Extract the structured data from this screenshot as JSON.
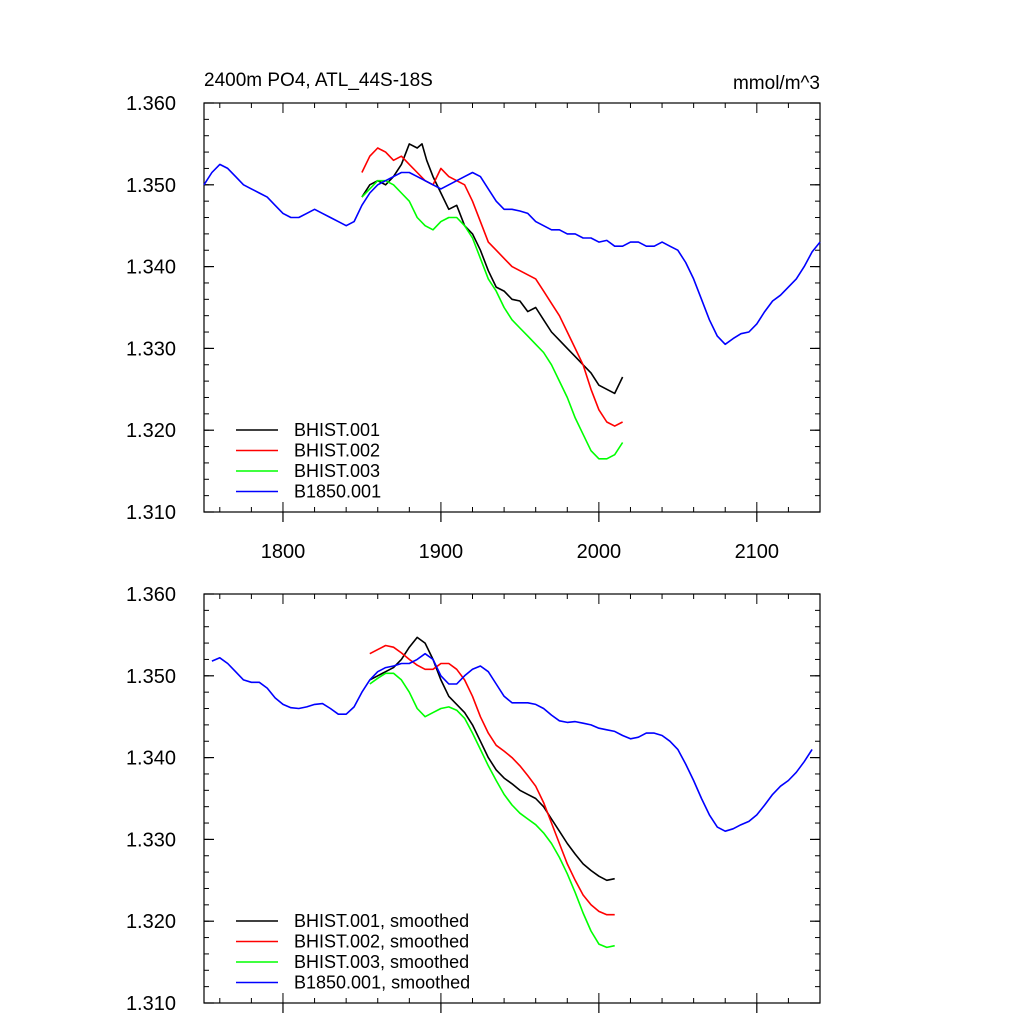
{
  "chart_data": [
    {
      "type": "line",
      "title": "2400m PO4, ATL_44S-18S",
      "units": "mmol/m^3",
      "xlim": [
        1750,
        2140
      ],
      "ylim": [
        1.31,
        1.36
      ],
      "xticks": [
        1800,
        1900,
        2000,
        2100
      ],
      "yticks": [
        1.31,
        1.32,
        1.33,
        1.34,
        1.35,
        1.36
      ],
      "ytick_labels": [
        "1.310",
        "1.320",
        "1.330",
        "1.340",
        "1.350",
        "1.360"
      ],
      "xtick_labels_shown": true,
      "legend_position": "bottom-left",
      "series": [
        {
          "name": "BHIST.001",
          "color": "#000000",
          "x": [
            1850,
            1855,
            1860,
            1865,
            1870,
            1875,
            1880,
            1885,
            1888,
            1891,
            1895,
            1900,
            1905,
            1910,
            1915,
            1920,
            1925,
            1930,
            1935,
            1940,
            1945,
            1950,
            1955,
            1960,
            1965,
            1970,
            1975,
            1980,
            1985,
            1990,
            1995,
            2000,
            2005,
            2010,
            2015
          ],
          "y": [
            1.3485,
            1.35,
            1.3505,
            1.35,
            1.351,
            1.3525,
            1.355,
            1.3545,
            1.355,
            1.353,
            1.351,
            1.349,
            1.347,
            1.3475,
            1.345,
            1.344,
            1.342,
            1.3395,
            1.3375,
            1.337,
            1.336,
            1.3358,
            1.3345,
            1.335,
            1.3335,
            1.332,
            1.331,
            1.33,
            1.329,
            1.328,
            1.327,
            1.3255,
            1.325,
            1.3245,
            1.3265
          ]
        },
        {
          "name": "BHIST.002",
          "color": "#ff0000",
          "x": [
            1850,
            1855,
            1860,
            1865,
            1870,
            1875,
            1880,
            1885,
            1890,
            1895,
            1900,
            1905,
            1910,
            1915,
            1920,
            1925,
            1930,
            1935,
            1940,
            1945,
            1950,
            1955,
            1960,
            1965,
            1970,
            1975,
            1980,
            1985,
            1990,
            1995,
            2000,
            2005,
            2010,
            2015
          ],
          "y": [
            1.3515,
            1.3535,
            1.3545,
            1.354,
            1.353,
            1.3535,
            1.3525,
            1.3515,
            1.3505,
            1.35,
            1.352,
            1.351,
            1.3505,
            1.35,
            1.348,
            1.3455,
            1.343,
            1.342,
            1.341,
            1.34,
            1.3395,
            1.339,
            1.3385,
            1.337,
            1.3355,
            1.334,
            1.332,
            1.33,
            1.328,
            1.325,
            1.3225,
            1.321,
            1.3205,
            1.321
          ]
        },
        {
          "name": "BHIST.003",
          "color": "#00ff00",
          "x": [
            1850,
            1855,
            1860,
            1865,
            1870,
            1875,
            1880,
            1885,
            1890,
            1895,
            1900,
            1905,
            1910,
            1915,
            1920,
            1925,
            1930,
            1935,
            1940,
            1945,
            1950,
            1955,
            1960,
            1965,
            1970,
            1975,
            1980,
            1985,
            1990,
            1995,
            2000,
            2005,
            2010,
            2015
          ],
          "y": [
            1.3485,
            1.3495,
            1.3505,
            1.3505,
            1.35,
            1.349,
            1.348,
            1.346,
            1.345,
            1.3445,
            1.3455,
            1.346,
            1.346,
            1.345,
            1.3435,
            1.341,
            1.3385,
            1.337,
            1.335,
            1.3335,
            1.3325,
            1.3315,
            1.3305,
            1.3295,
            1.328,
            1.326,
            1.324,
            1.3215,
            1.3195,
            1.3175,
            1.3165,
            1.3165,
            1.317,
            1.3185
          ]
        },
        {
          "name": "B1850.001",
          "color": "#0000ff",
          "x": [
            1750,
            1755,
            1760,
            1765,
            1770,
            1775,
            1780,
            1785,
            1790,
            1795,
            1800,
            1805,
            1810,
            1815,
            1820,
            1825,
            1830,
            1835,
            1840,
            1845,
            1850,
            1855,
            1860,
            1865,
            1870,
            1875,
            1880,
            1885,
            1890,
            1895,
            1900,
            1905,
            1910,
            1915,
            1920,
            1925,
            1930,
            1935,
            1940,
            1945,
            1950,
            1955,
            1960,
            1965,
            1970,
            1975,
            1980,
            1985,
            1990,
            1995,
            2000,
            2005,
            2010,
            2015,
            2020,
            2025,
            2030,
            2035,
            2040,
            2045,
            2050,
            2055,
            2060,
            2065,
            2070,
            2075,
            2080,
            2085,
            2090,
            2095,
            2100,
            2105,
            2110,
            2115,
            2120,
            2125,
            2130,
            2135,
            2140
          ],
          "y": [
            1.35,
            1.3515,
            1.3525,
            1.352,
            1.351,
            1.35,
            1.3495,
            1.349,
            1.3485,
            1.3475,
            1.3465,
            1.346,
            1.346,
            1.3465,
            1.347,
            1.3465,
            1.346,
            1.3455,
            1.345,
            1.3455,
            1.3475,
            1.349,
            1.35,
            1.3505,
            1.351,
            1.3515,
            1.3515,
            1.351,
            1.3505,
            1.35,
            1.3495,
            1.35,
            1.3505,
            1.351,
            1.3515,
            1.351,
            1.3495,
            1.348,
            1.347,
            1.347,
            1.3468,
            1.3465,
            1.3455,
            1.345,
            1.3445,
            1.3445,
            1.344,
            1.344,
            1.3435,
            1.3435,
            1.343,
            1.3432,
            1.3425,
            1.3425,
            1.343,
            1.343,
            1.3425,
            1.3425,
            1.343,
            1.3425,
            1.342,
            1.3405,
            1.3385,
            1.336,
            1.3335,
            1.3315,
            1.3305,
            1.3312,
            1.3318,
            1.332,
            1.333,
            1.3345,
            1.3358,
            1.3365,
            1.3375,
            1.3385,
            1.34,
            1.3418,
            1.343
          ]
        }
      ]
    },
    {
      "type": "line",
      "title": "",
      "xlim": [
        1750,
        2140
      ],
      "ylim": [
        1.31,
        1.36
      ],
      "xticks": [
        1800,
        1900,
        2000,
        2100
      ],
      "yticks": [
        1.31,
        1.32,
        1.33,
        1.34,
        1.35,
        1.36
      ],
      "ytick_labels": [
        "1.310",
        "1.320",
        "1.330",
        "1.340",
        "1.350",
        "1.360"
      ],
      "xtick_labels_shown": false,
      "legend_position": "bottom-left",
      "series": [
        {
          "name": "BHIST.001, smoothed",
          "color": "#000000",
          "x": [
            1855,
            1860,
            1865,
            1870,
            1875,
            1880,
            1885,
            1890,
            1895,
            1900,
            1905,
            1910,
            1915,
            1920,
            1925,
            1930,
            1935,
            1940,
            1945,
            1950,
            1955,
            1960,
            1965,
            1970,
            1975,
            1980,
            1985,
            1990,
            1995,
            2000,
            2005,
            2010
          ],
          "y": [
            1.3495,
            1.35,
            1.3505,
            1.351,
            1.352,
            1.3535,
            1.3547,
            1.354,
            1.352,
            1.3495,
            1.3475,
            1.3465,
            1.3455,
            1.344,
            1.342,
            1.34,
            1.3385,
            1.3375,
            1.3368,
            1.336,
            1.3355,
            1.335,
            1.334,
            1.3325,
            1.331,
            1.3295,
            1.3282,
            1.327,
            1.3262,
            1.3255,
            1.325,
            1.3252
          ]
        },
        {
          "name": "BHIST.002, smoothed",
          "color": "#ff0000",
          "x": [
            1855,
            1860,
            1865,
            1870,
            1875,
            1880,
            1885,
            1890,
            1895,
            1900,
            1905,
            1910,
            1915,
            1920,
            1925,
            1930,
            1935,
            1940,
            1945,
            1950,
            1955,
            1960,
            1965,
            1970,
            1975,
            1980,
            1985,
            1990,
            1995,
            2000,
            2005,
            2010
          ],
          "y": [
            1.3527,
            1.3532,
            1.3537,
            1.3535,
            1.3528,
            1.352,
            1.3513,
            1.3508,
            1.3508,
            1.3515,
            1.3515,
            1.3508,
            1.3495,
            1.3475,
            1.345,
            1.343,
            1.3415,
            1.3408,
            1.34,
            1.339,
            1.3378,
            1.3365,
            1.3345,
            1.332,
            1.3295,
            1.327,
            1.325,
            1.3232,
            1.322,
            1.3212,
            1.3208,
            1.3208
          ]
        },
        {
          "name": "BHIST.003, smoothed",
          "color": "#00ff00",
          "x": [
            1855,
            1860,
            1865,
            1870,
            1875,
            1880,
            1885,
            1890,
            1895,
            1900,
            1905,
            1910,
            1915,
            1920,
            1925,
            1930,
            1935,
            1940,
            1945,
            1950,
            1955,
            1960,
            1965,
            1970,
            1975,
            1980,
            1985,
            1990,
            1995,
            2000,
            2005,
            2010
          ],
          "y": [
            1.349,
            1.3497,
            1.3503,
            1.3503,
            1.3495,
            1.348,
            1.346,
            1.345,
            1.3455,
            1.346,
            1.3462,
            1.3458,
            1.3448,
            1.343,
            1.341,
            1.339,
            1.3372,
            1.3355,
            1.3342,
            1.3332,
            1.3325,
            1.3318,
            1.3308,
            1.3295,
            1.3278,
            1.3258,
            1.3235,
            1.321,
            1.3188,
            1.3172,
            1.3168,
            1.317
          ]
        },
        {
          "name": "B1850.001, smoothed",
          "color": "#0000ff",
          "x": [
            1755,
            1760,
            1765,
            1770,
            1775,
            1780,
            1785,
            1790,
            1795,
            1800,
            1805,
            1810,
            1815,
            1820,
            1825,
            1830,
            1835,
            1840,
            1845,
            1850,
            1855,
            1860,
            1865,
            1870,
            1875,
            1880,
            1885,
            1890,
            1895,
            1900,
            1905,
            1910,
            1915,
            1920,
            1925,
            1930,
            1935,
            1940,
            1945,
            1950,
            1955,
            1960,
            1965,
            1970,
            1975,
            1980,
            1985,
            1990,
            1995,
            2000,
            2005,
            2010,
            2015,
            2020,
            2025,
            2030,
            2035,
            2040,
            2045,
            2050,
            2055,
            2060,
            2065,
            2070,
            2075,
            2080,
            2085,
            2090,
            2095,
            2100,
            2105,
            2110,
            2115,
            2120,
            2125,
            2130,
            2135
          ],
          "y": [
            1.3518,
            1.3522,
            1.3515,
            1.3505,
            1.3495,
            1.3492,
            1.3492,
            1.3485,
            1.3473,
            1.3465,
            1.3461,
            1.346,
            1.3462,
            1.3465,
            1.3466,
            1.346,
            1.3453,
            1.3453,
            1.3462,
            1.348,
            1.3495,
            1.3505,
            1.351,
            1.3512,
            1.3515,
            1.3515,
            1.352,
            1.3527,
            1.352,
            1.35,
            1.349,
            1.349,
            1.35,
            1.3508,
            1.3512,
            1.3505,
            1.349,
            1.3475,
            1.3467,
            1.3467,
            1.3467,
            1.3465,
            1.346,
            1.3452,
            1.3445,
            1.3443,
            1.3444,
            1.3442,
            1.344,
            1.3436,
            1.3434,
            1.3432,
            1.3427,
            1.3423,
            1.3425,
            1.343,
            1.343,
            1.3427,
            1.342,
            1.341,
            1.3392,
            1.3372,
            1.335,
            1.333,
            1.3315,
            1.331,
            1.3313,
            1.3318,
            1.3322,
            1.333,
            1.3342,
            1.3355,
            1.3365,
            1.3372,
            1.3382,
            1.3395,
            1.341
          ]
        }
      ]
    }
  ]
}
